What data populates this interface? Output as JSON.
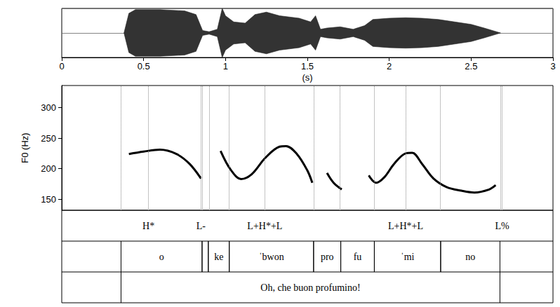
{
  "chart_data": {
    "type": "line",
    "xlabel": "(s)",
    "ylabel": "F0 (Hz)",
    "x": [
      0.41,
      0.5,
      0.6,
      0.7,
      0.78,
      0.85,
      0.91,
      0.97,
      1.03,
      1.095,
      1.16,
      1.244,
      1.33,
      1.37,
      1.436,
      1.5,
      1.53,
      1.58,
      1.62,
      1.66,
      1.71,
      1.8,
      1.875,
      1.92,
      1.97,
      2.03,
      2.1,
      2.14,
      2.2,
      2.27,
      2.35,
      2.44,
      2.52,
      2.61,
      2.65
    ],
    "values": [
      224,
      228,
      231,
      224,
      208,
      184,
      null,
      229,
      199,
      183,
      191,
      218,
      236,
      237,
      224,
      197,
      177,
      null,
      193,
      177,
      166,
      null,
      189,
      177,
      186,
      208,
      225,
      226,
      208,
      184,
      170,
      164,
      161,
      166,
      173
    ],
    "color": "#000000",
    "xlim": [
      0,
      3
    ],
    "xticks": [
      0,
      0.5,
      1,
      1.5,
      2,
      2.5,
      3
    ],
    "ylim": [
      132,
      336
    ],
    "yticks": [
      150,
      200,
      250,
      300
    ],
    "waveform": {
      "x": [
        0.38,
        0.41,
        0.45,
        0.6,
        0.75,
        0.82,
        0.86,
        0.9,
        0.95,
        0.98,
        1.0,
        1.05,
        1.12,
        1.18,
        1.25,
        1.33,
        1.45,
        1.52,
        1.55,
        1.58,
        1.62,
        1.7,
        1.78,
        1.85,
        1.9,
        2.0,
        2.1,
        2.2,
        2.3,
        2.4,
        2.5,
        2.58,
        2.64,
        2.68
      ],
      "amplitude": [
        0,
        0.8,
        0.95,
        0.95,
        0.9,
        0.75,
        0.1,
        0.05,
        0.15,
        1.0,
        0.7,
        0.45,
        0.4,
        0.75,
        0.85,
        0.7,
        0.6,
        0.45,
        0.7,
        0.15,
        0.2,
        0.25,
        0.15,
        0.3,
        0.55,
        0.6,
        0.62,
        0.6,
        0.55,
        0.45,
        0.35,
        0.2,
        0.08,
        0
      ],
      "ylim": [
        -1,
        1
      ]
    },
    "tiers": {
      "tones": [
        {
          "time": 0.53,
          "label": "H*"
        },
        {
          "time": 0.85,
          "label": "L-"
        },
        {
          "time": 1.24,
          "label": "L+H*+L"
        },
        {
          "time": 2.1,
          "label": "L+H*+L"
        },
        {
          "time": 2.69,
          "label": "L%"
        }
      ],
      "syllables": [
        {
          "start": 0.362,
          "end": 0.857,
          "label": "o"
        },
        {
          "start": 0.857,
          "end": 0.895,
          "label": null
        },
        {
          "start": 0.895,
          "end": 1.023,
          "label": "ke"
        },
        {
          "start": 1.023,
          "end": 1.538,
          "label": "ˈbwon"
        },
        {
          "start": 1.538,
          "end": 1.704,
          "label": "pro"
        },
        {
          "start": 1.704,
          "end": 1.909,
          "label": "fu"
        },
        {
          "start": 1.909,
          "end": 2.314,
          "label": "ˈmi"
        },
        {
          "start": 2.314,
          "end": 2.676,
          "label": "no"
        }
      ],
      "sentence": {
        "start": 0.362,
        "end": 2.676,
        "label": "Oh, che buon profumino!"
      }
    }
  }
}
